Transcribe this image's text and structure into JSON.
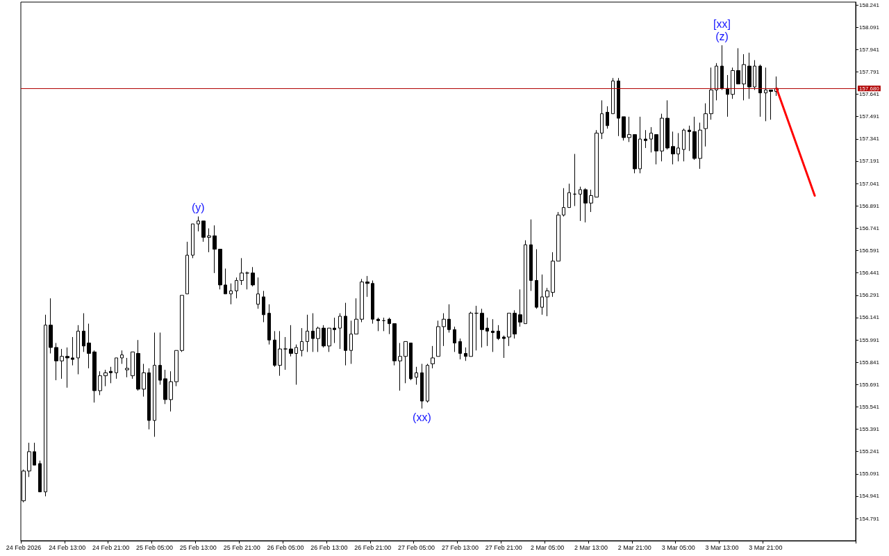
{
  "chart_data": {
    "type": "candlestick",
    "categories": [
      "24 Feb 2026",
      null,
      null,
      null,
      null,
      null,
      null,
      null,
      "24 Feb 13:00",
      null,
      null,
      null,
      null,
      null,
      null,
      null,
      "24 Feb 21:00",
      null,
      null,
      null,
      null,
      null,
      null,
      null,
      "25 Feb 05:00",
      null,
      null,
      null,
      null,
      null,
      null,
      null,
      "25 Feb 13:00",
      null,
      null,
      null,
      null,
      null,
      null,
      null,
      "25 Feb 21:00",
      null,
      null,
      null,
      null,
      null,
      null,
      null,
      "26 Feb 05:00",
      null,
      null,
      null,
      null,
      null,
      null,
      null,
      "26 Feb 13:00",
      null,
      null,
      null,
      null,
      null,
      null,
      null,
      "26 Feb 21:00",
      null,
      null,
      null,
      null,
      null,
      null,
      null,
      "27 Feb 05:00",
      null,
      null,
      null,
      null,
      null,
      null,
      null,
      "27 Feb 13:00",
      null,
      null,
      null,
      null,
      null,
      null,
      null,
      "27 Feb 21:00",
      null,
      null,
      null,
      null,
      null,
      null,
      null,
      "2 Mar 05:00",
      null,
      null,
      null,
      null,
      null,
      null,
      null,
      "2 Mar 13:00",
      null,
      null,
      null,
      null,
      null,
      null,
      null,
      "2 Mar 21:00",
      null,
      null,
      null,
      null,
      null,
      null,
      null,
      "3 Mar 05:00",
      null,
      null,
      null,
      null,
      null,
      null,
      null,
      "3 Mar 13:00",
      null,
      null,
      null,
      null,
      null,
      null,
      null,
      "3 Mar 21:00",
      null,
      null,
      null,
      null,
      null,
      null,
      null,
      null,
      null,
      null,
      null,
      null,
      null,
      null,
      null,
      null
    ],
    "ylim": [
      154.642,
      158.26
    ],
    "yticks": [
      154.791,
      154.941,
      155.091,
      155.241,
      155.391,
      155.541,
      155.691,
      155.841,
      155.991,
      156.141,
      156.291,
      156.441,
      156.591,
      156.741,
      156.891,
      157.041,
      157.191,
      157.341,
      157.491,
      157.641,
      157.791,
      157.941,
      158.091,
      158.241
    ],
    "grid": false,
    "ref_lines": [
      {
        "axis": "y",
        "value": 157.68,
        "label": "157.680",
        "color": "#b00000"
      }
    ],
    "series": [
      {
        "color": "#000000",
        "ohlc": [
          [
            154.91,
            155.12,
            154.9,
            155.11
          ],
          [
            155.11,
            155.3,
            155.07,
            155.24
          ],
          [
            155.24,
            155.3,
            155.15,
            155.15
          ],
          [
            155.16,
            155.18,
            154.97,
            154.97
          ],
          [
            154.97,
            156.16,
            154.94,
            156.09
          ],
          [
            156.09,
            156.27,
            155.9,
            155.94
          ],
          [
            155.94,
            155.97,
            155.72,
            155.85
          ],
          [
            155.85,
            155.93,
            155.73,
            155.88
          ],
          [
            155.88,
            155.94,
            155.67,
            155.87
          ],
          [
            155.87,
            156.01,
            155.82,
            155.86
          ],
          [
            155.87,
            156.09,
            155.76,
            156.05
          ],
          [
            156.05,
            156.17,
            155.91,
            155.95
          ],
          [
            155.97,
            156.1,
            155.8,
            155.9
          ],
          [
            155.91,
            155.92,
            155.57,
            155.65
          ],
          [
            155.65,
            155.78,
            155.62,
            155.75
          ],
          [
            155.75,
            155.79,
            155.68,
            155.77
          ],
          [
            155.78,
            155.81,
            155.7,
            155.77
          ],
          [
            155.77,
            155.87,
            155.73,
            155.87
          ],
          [
            155.87,
            155.92,
            155.83,
            155.89
          ],
          [
            155.79,
            155.87,
            155.74,
            155.8
          ],
          [
            155.75,
            155.91,
            155.73,
            155.91
          ],
          [
            155.9,
            155.99,
            155.65,
            155.66
          ],
          [
            155.66,
            155.83,
            155.61,
            155.77
          ],
          [
            155.77,
            155.8,
            155.39,
            155.45
          ],
          [
            155.45,
            156.04,
            155.34,
            155.82
          ],
          [
            155.82,
            156.04,
            155.69,
            155.72
          ],
          [
            155.73,
            155.79,
            155.56,
            155.59
          ],
          [
            155.59,
            155.78,
            155.51,
            155.71
          ],
          [
            155.71,
            155.92,
            155.68,
            155.92
          ],
          [
            155.92,
            156.29,
            155.91,
            156.29
          ],
          [
            156.3,
            156.65,
            156.3,
            156.56
          ],
          [
            156.56,
            156.77,
            156.54,
            156.77
          ],
          [
            156.77,
            156.82,
            156.72,
            156.79
          ],
          [
            156.79,
            156.79,
            156.65,
            156.68
          ],
          [
            156.68,
            156.74,
            156.58,
            156.69
          ],
          [
            156.69,
            156.76,
            156.44,
            156.6
          ],
          [
            156.6,
            156.6,
            156.33,
            156.36
          ],
          [
            156.36,
            156.47,
            156.3,
            156.3
          ],
          [
            156.3,
            156.37,
            156.23,
            156.32
          ],
          [
            156.32,
            156.41,
            156.27,
            156.39
          ],
          [
            156.39,
            156.54,
            156.36,
            156.44
          ],
          [
            156.44,
            156.45,
            156.33,
            156.44
          ],
          [
            156.44,
            156.48,
            156.35,
            156.36
          ],
          [
            156.23,
            156.41,
            156.2,
            156.3
          ],
          [
            156.28,
            156.32,
            156.11,
            156.16
          ],
          [
            156.17,
            156.23,
            155.96,
            155.99
          ],
          [
            155.99,
            156.05,
            155.81,
            155.82
          ],
          [
            155.82,
            156.05,
            155.75,
            155.93
          ],
          [
            155.93,
            156.01,
            155.79,
            155.93
          ],
          [
            155.93,
            156.09,
            155.88,
            155.9
          ],
          [
            155.9,
            155.96,
            155.69,
            155.94
          ],
          [
            155.92,
            156.07,
            155.88,
            155.98
          ],
          [
            155.98,
            156.16,
            155.91,
            156.05
          ],
          [
            156.05,
            156.17,
            155.91,
            156.0
          ],
          [
            156.0,
            156.08,
            155.91,
            156.07
          ],
          [
            156.07,
            156.09,
            155.94,
            155.95
          ],
          [
            155.95,
            156.07,
            155.91,
            156.07
          ],
          [
            156.07,
            156.14,
            155.97,
            156.06
          ],
          [
            156.07,
            156.17,
            155.93,
            156.15
          ],
          [
            156.15,
            156.24,
            155.82,
            155.92
          ],
          [
            155.92,
            156.12,
            155.83,
            156.03
          ],
          [
            156.03,
            156.27,
            156.03,
            156.13
          ],
          [
            156.13,
            156.4,
            156.11,
            156.38
          ],
          [
            156.38,
            156.42,
            156.28,
            156.37
          ],
          [
            156.37,
            156.39,
            156.1,
            156.13
          ],
          [
            156.13,
            156.14,
            156.05,
            156.12
          ],
          [
            156.12,
            156.14,
            156.05,
            156.12
          ],
          [
            156.13,
            156.14,
            156.03,
            156.1
          ],
          [
            156.1,
            156.1,
            155.82,
            155.85
          ],
          [
            155.85,
            155.97,
            155.65,
            155.88
          ],
          [
            155.88,
            155.98,
            155.7,
            155.98
          ],
          [
            155.97,
            155.97,
            155.72,
            155.73
          ],
          [
            155.74,
            155.81,
            155.69,
            155.77
          ],
          [
            155.77,
            155.83,
            155.53,
            155.58
          ],
          [
            155.58,
            155.83,
            155.57,
            155.82
          ],
          [
            155.83,
            155.95,
            155.8,
            155.87
          ],
          [
            155.88,
            156.12,
            155.88,
            156.08
          ],
          [
            156.08,
            156.17,
            155.95,
            156.13
          ],
          [
            156.13,
            156.23,
            156.04,
            156.06
          ],
          [
            156.06,
            156.08,
            155.91,
            155.97
          ],
          [
            155.98,
            156.0,
            155.86,
            155.9
          ],
          [
            155.9,
            155.94,
            155.85,
            155.88
          ],
          [
            155.88,
            156.18,
            155.88,
            156.17
          ],
          [
            156.17,
            156.22,
            155.92,
            156.17
          ],
          [
            156.17,
            156.2,
            155.94,
            156.06
          ],
          [
            156.07,
            156.14,
            155.95,
            156.05
          ],
          [
            156.05,
            156.13,
            155.91,
            156.04
          ],
          [
            156.05,
            156.09,
            155.99,
            156.0
          ],
          [
            156.01,
            156.02,
            155.87,
            156.0
          ],
          [
            156.01,
            156.17,
            155.95,
            156.17
          ],
          [
            156.17,
            156.19,
            156.0,
            156.03
          ],
          [
            156.16,
            156.33,
            156.08,
            156.11
          ],
          [
            156.1,
            156.66,
            156.1,
            156.63
          ],
          [
            156.63,
            156.8,
            156.32,
            156.39
          ],
          [
            156.39,
            156.6,
            156.2,
            156.21
          ],
          [
            156.21,
            156.43,
            156.16,
            156.28
          ],
          [
            156.28,
            156.34,
            156.15,
            156.32
          ],
          [
            156.31,
            156.58,
            156.28,
            156.52
          ],
          [
            156.52,
            156.85,
            156.52,
            156.83
          ],
          [
            156.83,
            157.01,
            156.82,
            156.88
          ],
          [
            156.88,
            157.04,
            156.88,
            156.98
          ],
          [
            156.97,
            157.24,
            156.89,
            156.97
          ],
          [
            156.97,
            157.02,
            156.79,
            157.0
          ],
          [
            157.0,
            157.01,
            156.78,
            156.91
          ],
          [
            156.91,
            157.0,
            156.85,
            156.96
          ],
          [
            156.95,
            157.4,
            156.95,
            157.38
          ],
          [
            157.38,
            157.6,
            157.34,
            157.51
          ],
          [
            157.52,
            157.56,
            157.41,
            157.43
          ],
          [
            157.51,
            157.75,
            157.51,
            157.73
          ],
          [
            157.73,
            157.75,
            157.36,
            157.48
          ],
          [
            157.49,
            157.49,
            157.33,
            157.35
          ],
          [
            157.35,
            157.49,
            157.32,
            157.37
          ],
          [
            157.37,
            157.37,
            157.11,
            157.14
          ],
          [
            157.14,
            157.49,
            157.11,
            157.34
          ],
          [
            157.34,
            157.4,
            157.28,
            157.33
          ],
          [
            157.34,
            157.42,
            157.25,
            157.38
          ],
          [
            157.37,
            157.37,
            157.17,
            157.26
          ],
          [
            157.26,
            157.51,
            157.19,
            157.48
          ],
          [
            157.48,
            157.6,
            157.27,
            157.28
          ],
          [
            157.29,
            157.39,
            157.17,
            157.24
          ],
          [
            157.24,
            157.38,
            157.19,
            157.28
          ],
          [
            157.27,
            157.41,
            157.19,
            157.4
          ],
          [
            157.4,
            157.43,
            157.26,
            157.39
          ],
          [
            157.39,
            157.49,
            157.2,
            157.21
          ],
          [
            157.21,
            157.45,
            157.14,
            157.4
          ],
          [
            157.41,
            157.58,
            157.29,
            157.51
          ],
          [
            157.51,
            157.82,
            157.47,
            157.67
          ],
          [
            157.67,
            157.85,
            157.6,
            157.83
          ],
          [
            157.83,
            157.97,
            157.67,
            157.68
          ],
          [
            157.68,
            157.77,
            157.49,
            157.64
          ],
          [
            157.64,
            157.82,
            157.61,
            157.8
          ],
          [
            157.8,
            157.95,
            157.71,
            157.71
          ],
          [
            157.71,
            157.91,
            157.6,
            157.84
          ],
          [
            157.83,
            157.92,
            157.61,
            157.69
          ],
          [
            157.69,
            157.87,
            157.67,
            157.83
          ],
          [
            157.83,
            157.84,
            157.49,
            157.65
          ],
          [
            157.65,
            157.82,
            157.46,
            157.67
          ],
          [
            157.67,
            157.67,
            157.47,
            157.66
          ],
          [
            157.66,
            157.76,
            157.63,
            157.68
          ],
          null,
          null,
          null,
          null,
          null,
          null,
          null,
          null,
          null,
          null,
          null,
          null,
          null,
          null
        ],
        "value_labels": [
          null,
          null,
          null,
          null,
          null,
          null,
          null,
          null,
          null,
          null,
          null,
          null,
          null,
          null,
          null,
          null,
          null,
          null,
          null,
          null,
          null,
          null,
          null,
          null,
          null,
          null,
          null,
          null,
          null,
          null,
          null,
          null,
          "(y)",
          null,
          null,
          null,
          null,
          null,
          null,
          null,
          null,
          null,
          null,
          null,
          null,
          null,
          null,
          null,
          null,
          null,
          null,
          null,
          null,
          null,
          null,
          null,
          null,
          null,
          null,
          null,
          null,
          null,
          null,
          null,
          null,
          null,
          null,
          null,
          null,
          null,
          null,
          null,
          null,
          "(xx)",
          null,
          null,
          null,
          null,
          null,
          null,
          null,
          null,
          null,
          null,
          null,
          null,
          null,
          null,
          null,
          null,
          null,
          null,
          null,
          null,
          null,
          null,
          null,
          null,
          null,
          null,
          null,
          null,
          null,
          null,
          null,
          null,
          null,
          null,
          null,
          null,
          null,
          null,
          null,
          null,
          null,
          null,
          null,
          null,
          null,
          null,
          null,
          null,
          null,
          null,
          null,
          null,
          null,
          null,
          [
            "[xx]",
            "(z)"
          ],
          null,
          null,
          null,
          null,
          null,
          null,
          null,
          null,
          null,
          null,
          null,
          null,
          null,
          null,
          null,
          null,
          null,
          null,
          null,
          null,
          null,
          null,
          null,
          null
        ]
      },
      {
        "type": "line",
        "color": "#ff0000",
        "line_style": "solid",
        "values": [
          null,
          null,
          null,
          null,
          null,
          null,
          null,
          null,
          null,
          null,
          null,
          null,
          null,
          null,
          null,
          null,
          null,
          null,
          null,
          null,
          null,
          null,
          null,
          null,
          null,
          null,
          null,
          null,
          null,
          null,
          null,
          null,
          null,
          null,
          null,
          null,
          null,
          null,
          null,
          null,
          null,
          null,
          null,
          null,
          null,
          null,
          null,
          null,
          null,
          null,
          null,
          null,
          null,
          null,
          null,
          null,
          null,
          null,
          null,
          null,
          null,
          null,
          null,
          null,
          null,
          null,
          null,
          null,
          null,
          null,
          null,
          null,
          null,
          null,
          null,
          null,
          null,
          null,
          null,
          null,
          null,
          null,
          null,
          null,
          null,
          null,
          null,
          null,
          null,
          null,
          null,
          null,
          null,
          null,
          null,
          null,
          null,
          null,
          null,
          null,
          null,
          null,
          null,
          null,
          null,
          null,
          null,
          null,
          null,
          null,
          null,
          null,
          null,
          null,
          null,
          null,
          null,
          null,
          null,
          null,
          null,
          null,
          null,
          null,
          null,
          null,
          null,
          null,
          null,
          null,
          null,
          null,
          null,
          null,
          null,
          null,
          null,
          null,
          157.68,
          null,
          null,
          null,
          null,
          null,
          null,
          156.96,
          null,
          null,
          null,
          null,
          null,
          null,
          null
        ]
      }
    ]
  }
}
